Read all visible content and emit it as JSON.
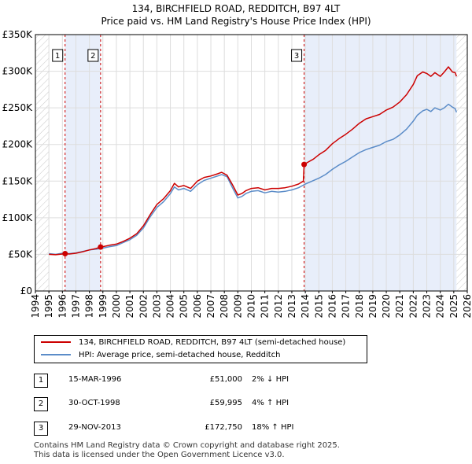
{
  "title_line1": "134, BIRCHFIELD ROAD, REDDITCH, B97 4LT",
  "title_line2": "Price paid vs. HM Land Registry's House Price Index (HPI)",
  "legend": {
    "property_label": "134, BIRCHFIELD ROAD, REDDITCH, B97 4LT (semi-detached house)",
    "hpi_label": "HPI: Average price, semi-detached house, Redditch"
  },
  "sales": [
    {
      "num": "1",
      "date": "15-MAR-1996",
      "price": "£51,000",
      "hpi": "2% ↓ HPI"
    },
    {
      "num": "2",
      "date": "30-OCT-1998",
      "price": "£59,995",
      "hpi": "4% ↑ HPI"
    },
    {
      "num": "3",
      "date": "29-NOV-2013",
      "price": "£172,750",
      "hpi": "18% ↑ HPI"
    }
  ],
  "footer_line1": "Contains HM Land Registry data © Crown copyright and database right 2025.",
  "footer_line2": "This data is licensed under the Open Government Licence v3.0.",
  "colors": {
    "property": "#cc0000",
    "hpi": "#5b8cc8",
    "shade": "#e8eefa",
    "marker_line": "#cc0000"
  },
  "chart_data": {
    "type": "line",
    "xlim": [
      1994,
      2026
    ],
    "ylim": [
      0,
      350000
    ],
    "x_ticks": [
      1994,
      1995,
      1996,
      1997,
      1998,
      1999,
      2000,
      2001,
      2002,
      2003,
      2004,
      2005,
      2006,
      2007,
      2008,
      2009,
      2010,
      2011,
      2012,
      2013,
      2014,
      2015,
      2016,
      2017,
      2018,
      2019,
      2020,
      2021,
      2022,
      2023,
      2024,
      2025,
      2026
    ],
    "y_ticks": [
      {
        "value": 0,
        "label": "£0"
      },
      {
        "value": 50000,
        "label": "£50K"
      },
      {
        "value": 100000,
        "label": "£100K"
      },
      {
        "value": 150000,
        "label": "£150K"
      },
      {
        "value": 200000,
        "label": "£200K"
      },
      {
        "value": 250000,
        "label": "£250K"
      },
      {
        "value": 300000,
        "label": "£300K"
      },
      {
        "value": 350000,
        "label": "£350K"
      }
    ],
    "grid": true,
    "sale_markers": [
      {
        "label": "1",
        "x": 1996.2,
        "y": 51000
      },
      {
        "label": "2",
        "x": 1998.83,
        "y": 59995
      },
      {
        "label": "3",
        "x": 2013.91,
        "y": 172750
      }
    ],
    "shaded_ranges": [
      [
        1996.2,
        1998.83
      ],
      [
        2013.91,
        2025.2
      ]
    ],
    "hatch_ranges": [
      [
        1994,
        1995.0
      ],
      [
        2025.2,
        2026
      ]
    ],
    "series": [
      {
        "name": "134, BIRCHFIELD ROAD, REDDITCH, B97 4LT (semi-detached house)",
        "x": [
          1995.0,
          1995.5,
          1996.0,
          1996.2,
          1996.5,
          1997.0,
          1997.5,
          1998.0,
          1998.5,
          1998.83,
          1999.0,
          1999.5,
          2000.0,
          2000.5,
          2001.0,
          2001.5,
          2002.0,
          2002.5,
          2003.0,
          2003.5,
          2004.0,
          2004.3,
          2004.6,
          2005.0,
          2005.5,
          2006.0,
          2006.5,
          2007.0,
          2007.5,
          2007.8,
          2008.2,
          2008.6,
          2009.0,
          2009.3,
          2009.6,
          2010.0,
          2010.5,
          2011.0,
          2011.5,
          2012.0,
          2012.5,
          2013.0,
          2013.5,
          2013.85,
          2013.91,
          2014.2,
          2014.6,
          2015.0,
          2015.5,
          2016.0,
          2016.5,
          2017.0,
          2017.5,
          2018.0,
          2018.5,
          2019.0,
          2019.5,
          2020.0,
          2020.5,
          2021.0,
          2021.5,
          2022.0,
          2022.3,
          2022.7,
          2023.0,
          2023.3,
          2023.6,
          2024.0,
          2024.3,
          2024.6,
          2024.9,
          2025.1,
          2025.2
        ],
        "y": [
          50000,
          49500,
          50500,
          51000,
          50500,
          51500,
          53500,
          56000,
          58000,
          59995,
          60500,
          62500,
          64000,
          67500,
          72000,
          78000,
          89000,
          104000,
          118000,
          126000,
          137000,
          147000,
          142000,
          144000,
          140000,
          150000,
          155000,
          157000,
          160000,
          162000,
          158000,
          145000,
          131000,
          133000,
          137000,
          140000,
          141000,
          138000,
          140000,
          140000,
          141000,
          143000,
          146000,
          150000,
          172750,
          176000,
          180000,
          186000,
          192000,
          201000,
          208000,
          214000,
          221000,
          229000,
          235000,
          238000,
          241000,
          247000,
          251000,
          258000,
          268000,
          282000,
          294000,
          299000,
          297000,
          293000,
          298000,
          293000,
          299000,
          306000,
          299000,
          298000,
          293000
        ]
      },
      {
        "name": "HPI: Average price, semi-detached house, Redditch",
        "x": [
          1995.0,
          1995.5,
          1996.0,
          1996.5,
          1997.0,
          1997.5,
          1998.0,
          1998.5,
          1999.0,
          1999.5,
          2000.0,
          2000.5,
          2001.0,
          2001.5,
          2002.0,
          2002.5,
          2003.0,
          2003.5,
          2004.0,
          2004.3,
          2004.6,
          2005.0,
          2005.5,
          2006.0,
          2006.5,
          2007.0,
          2007.5,
          2007.8,
          2008.2,
          2008.6,
          2009.0,
          2009.3,
          2009.6,
          2010.0,
          2010.5,
          2011.0,
          2011.5,
          2012.0,
          2012.5,
          2013.0,
          2013.5,
          2014.0,
          2014.5,
          2015.0,
          2015.5,
          2016.0,
          2016.5,
          2017.0,
          2017.5,
          2018.0,
          2018.5,
          2019.0,
          2019.5,
          2020.0,
          2020.5,
          2021.0,
          2021.5,
          2022.0,
          2022.3,
          2022.7,
          2023.0,
          2023.3,
          2023.6,
          2024.0,
          2024.3,
          2024.6,
          2024.9,
          2025.1,
          2025.2
        ],
        "y": [
          51000,
          50000,
          51500,
          51000,
          52000,
          54000,
          56000,
          57000,
          58500,
          60500,
          62000,
          66000,
          70000,
          76000,
          86000,
          101000,
          114000,
          122000,
          133000,
          142000,
          138000,
          140000,
          136000,
          145000,
          151000,
          154000,
          157000,
          159000,
          156000,
          141000,
          127000,
          129000,
          133000,
          136000,
          137000,
          134000,
          136000,
          135000,
          136000,
          138000,
          141000,
          146000,
          150000,
          154000,
          159000,
          166000,
          172000,
          177000,
          183000,
          189000,
          193000,
          196000,
          199000,
          204000,
          207000,
          213000,
          221000,
          232000,
          240000,
          246000,
          248000,
          245000,
          250000,
          247000,
          250000,
          255000,
          251000,
          249000,
          244000
        ]
      }
    ]
  }
}
